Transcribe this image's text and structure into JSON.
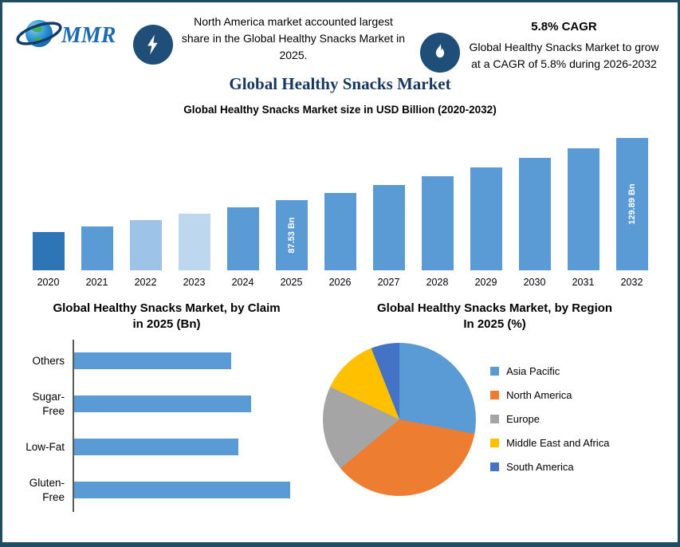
{
  "header": {
    "logo_text": "MMR",
    "callout": "North America market accounted largest share in the Global Healthy Snacks Market in 2025.",
    "cagr_title": "5.8% CAGR",
    "cagr_text": "Global Healthy Snacks Market to grow at a CAGR of 5.8% during 2026-2032",
    "icons": {
      "left_badge": "lightning-icon",
      "right_badge": "flame-icon",
      "logo": "globe-logo-icon"
    }
  },
  "main_title": "Global Healthy Snacks Market",
  "colors": {
    "border": "#1F4E63",
    "badge_background": "#1F4E79",
    "title_navy": "#17375E",
    "bar_blue": "#5B9BD5",
    "orange": "#ED7D31",
    "gray": "#A5A5A5",
    "yellow": "#FFC000",
    "dark_blue": "#4472C4"
  },
  "chart_data": [
    {
      "type": "bar",
      "title": "Global Healthy Snacks Market size in USD Billion (2020-2032)",
      "categories": [
        "2020",
        "2021",
        "2022",
        "2023",
        "2024",
        "2025",
        "2026",
        "2027",
        "2028",
        "2029",
        "2030",
        "2031",
        "2032"
      ],
      "values": [
        66.1,
        69.9,
        73.9,
        78.2,
        82.7,
        87.53,
        92.61,
        97.98,
        103.66,
        109.67,
        116.03,
        122.76,
        129.89
      ],
      "data_labels": {
        "2025": "87.53 Bn",
        "2032": "129.89 Bn"
      },
      "bar_color_default": "#5B9BD5",
      "bar_colors": {
        "2020": "#2E75B6",
        "2022": "#9DC3E6",
        "2023": "#BDD7EE"
      },
      "ylabel": "USD Billion",
      "ylim_visual": [
        40,
        140
      ],
      "grid": false,
      "legend": "none"
    },
    {
      "type": "bar-horizontal",
      "title": "Global Healthy Snacks Market, by Claim in 2025 (Bn)",
      "categories": [
        "Others",
        "Sugar-Free",
        "Low-Fat",
        "Gluten-Free"
      ],
      "values": [
        24,
        27,
        25,
        33
      ],
      "xlim": [
        0,
        36
      ],
      "bar_color": "#5B9BD5",
      "grid": false,
      "legend": "none"
    },
    {
      "type": "pie",
      "title": "Global Healthy Snacks Market, by Region In 2025 (%)",
      "slices": [
        {
          "label": "Asia Pacific",
          "value": 28,
          "color": "#5B9BD5"
        },
        {
          "label": "North America",
          "value": 36,
          "color": "#ED7D31"
        },
        {
          "label": "Europe",
          "value": 18,
          "color": "#A5A5A5"
        },
        {
          "label": "Middle East and Africa",
          "value": 12,
          "color": "#FFC000"
        },
        {
          "label": "South America",
          "value": 6,
          "color": "#4472C4"
        }
      ],
      "legend_position": "right"
    }
  ]
}
